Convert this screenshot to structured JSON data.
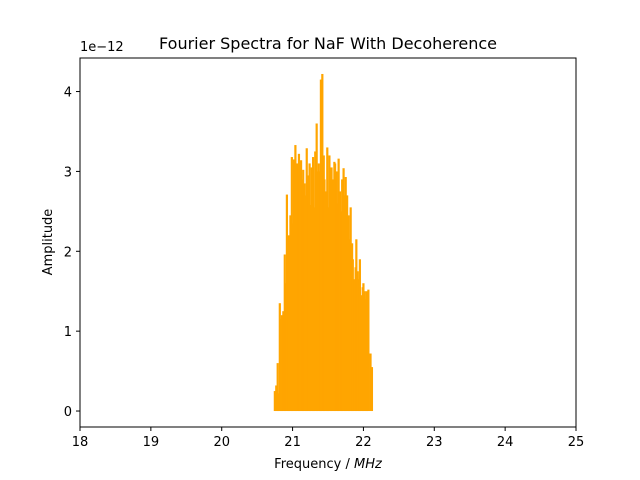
{
  "chart_data": {
    "type": "bar",
    "title": "Fourier Spectra for NaF With Decoherence",
    "xlabel": "Frequency / ",
    "xlabel_unit": "MHz",
    "ylabel": "Amplitude",
    "y_offset_text": "1e−12",
    "xlim": [
      18,
      25
    ],
    "ylim": [
      -0.2,
      4.42
    ],
    "xticks": [
      "18",
      "19",
      "20",
      "21",
      "22",
      "23",
      "24",
      "25"
    ],
    "yticks": [
      "0",
      "1",
      "2",
      "3",
      "4"
    ],
    "bar_color": "#ffa500",
    "grid": false,
    "series": [
      {
        "x": [
          20.75,
          20.77,
          20.79,
          20.8,
          20.82,
          20.84,
          20.85,
          20.87,
          20.89,
          20.9,
          20.92,
          20.94,
          20.95,
          20.97,
          20.99,
          21.0,
          21.02,
          21.04,
          21.05,
          21.07,
          21.09,
          21.1,
          21.12,
          21.14,
          21.15,
          21.17,
          21.19,
          21.2,
          21.22,
          21.24,
          21.25,
          21.27,
          21.29,
          21.3,
          21.32,
          21.34,
          21.35,
          21.37,
          21.39,
          21.4,
          21.42,
          21.44,
          21.45,
          21.47,
          21.49,
          21.5,
          21.52,
          21.54,
          21.55,
          21.57,
          21.59,
          21.6,
          21.62,
          21.64,
          21.65,
          21.67,
          21.69,
          21.7,
          21.72,
          21.74,
          21.75,
          21.77,
          21.79,
          21.8,
          21.82,
          21.84,
          21.85,
          21.87,
          21.89,
          21.9,
          21.92,
          21.94,
          21.95,
          21.97,
          21.99,
          22.0,
          22.02,
          22.04,
          22.05,
          22.07,
          22.1,
          22.12
        ],
        "values": [
          0.25,
          0.32,
          0.6,
          0.22,
          1.35,
          1.15,
          1.2,
          1.25,
          1.96,
          1.6,
          2.71,
          1.75,
          2.2,
          2.45,
          3.18,
          2.35,
          3.15,
          3.33,
          2.6,
          3.1,
          3.22,
          2.95,
          3.14,
          2.9,
          3.02,
          2.85,
          2.7,
          3.29,
          2.95,
          3.1,
          2.58,
          3.05,
          3.18,
          2.55,
          3.25,
          3.6,
          3.0,
          3.1,
          3.0,
          4.15,
          4.22,
          3.2,
          2.9,
          2.75,
          3.3,
          2.55,
          3.2,
          3.0,
          3.05,
          2.9,
          3.12,
          3.1,
          3.0,
          2.6,
          3.16,
          2.75,
          2.5,
          2.9,
          3.04,
          2.7,
          2.93,
          2.7,
          2.45,
          2.15,
          2.55,
          2.1,
          1.9,
          1.65,
          1.8,
          2.15,
          1.75,
          1.65,
          1.9,
          1.45,
          1.55,
          1.6,
          1.5,
          1.4,
          1.5,
          1.52,
          0.72,
          0.55
        ]
      }
    ]
  }
}
